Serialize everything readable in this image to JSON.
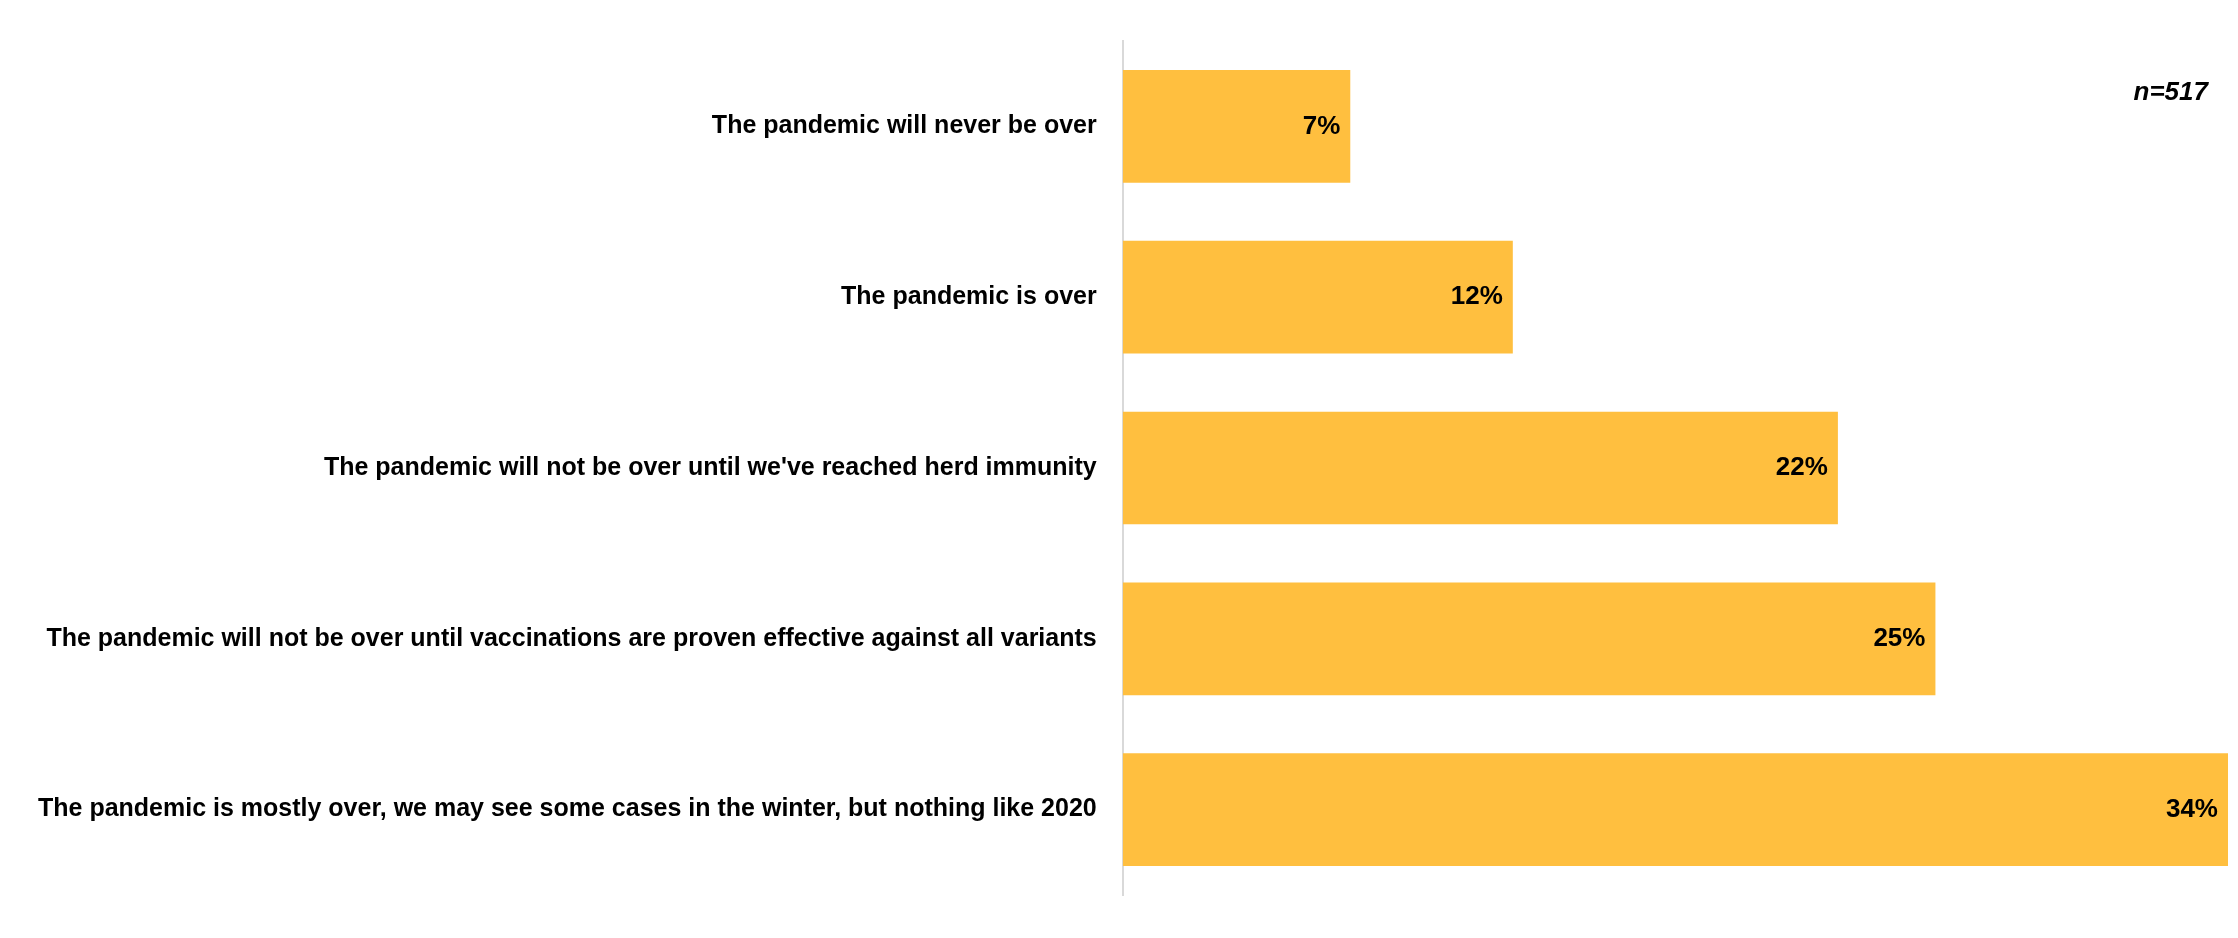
{
  "chart_data": {
    "type": "bar",
    "orientation": "horizontal",
    "categories": [
      "The pandemic will never be over",
      "The pandemic is over",
      "The pandemic will not be over until we've reached herd immunity",
      "The pandemic will not be over until vaccinations are proven effective against all variants",
      "The pandemic is mostly over, we may see some cases in the winter, but nothing like 2020"
    ],
    "values": [
      7,
      12,
      22,
      25,
      34
    ],
    "value_labels": [
      "7%",
      "12%",
      "22%",
      "25%",
      "34%"
    ],
    "color": "#ffbf3f",
    "annotations": [
      "n=517"
    ],
    "legend": false
  }
}
